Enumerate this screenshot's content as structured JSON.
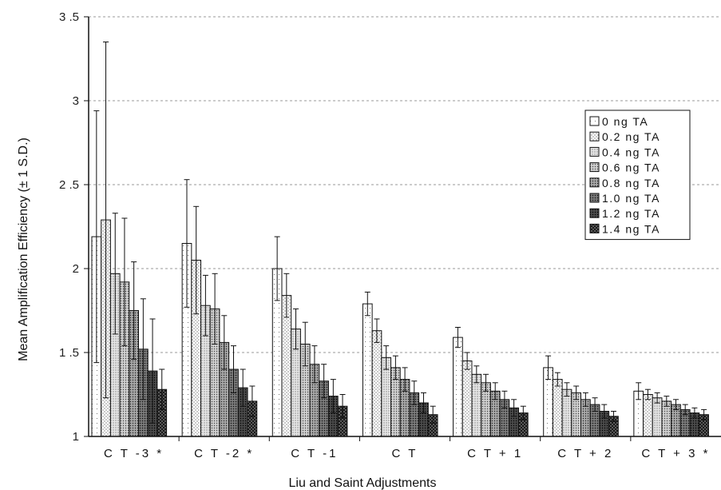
{
  "chart_data": {
    "type": "bar",
    "xlabel": "Liu and Saint Adjustments",
    "ylabel": "Mean Amplification Efficiency (± 1 S.D.)",
    "ylim": [
      1,
      3.5
    ],
    "yticks": [
      1,
      1.5,
      2,
      2.5,
      3,
      3.5
    ],
    "ytick_labels": [
      "1",
      "1 .5",
      "2",
      "2 .5",
      "3",
      "3 .5"
    ],
    "grid": "horizontal dashed",
    "legend_position": "top-right",
    "categories": [
      "CT-3*",
      "CT-2*",
      "CT-1",
      "CT",
      "CT+1",
      "CT+2",
      "CT+3*"
    ],
    "category_labels": [
      "C T -3 *",
      "C T -2 *",
      "C T -1",
      "C T",
      "C T + 1",
      "C T + 2",
      "C T + 3 *"
    ],
    "series": [
      {
        "name": "0 ng TA",
        "legend": "0 ng TA",
        "values": [
          2.19,
          2.15,
          2.0,
          1.79,
          1.59,
          1.41,
          1.27
        ],
        "errors": [
          0.75,
          0.38,
          0.19,
          0.07,
          0.06,
          0.07,
          0.05
        ]
      },
      {
        "name": "0.2 ng TA",
        "legend": "0.2 ng TA",
        "values": [
          2.29,
          2.05,
          1.84,
          1.63,
          1.45,
          1.34,
          1.25
        ],
        "errors": [
          1.06,
          0.32,
          0.13,
          0.07,
          0.05,
          0.04,
          0.03
        ]
      },
      {
        "name": "0.4 ng TA",
        "legend": "0.4 ng TA",
        "values": [
          1.97,
          1.78,
          1.64,
          1.47,
          1.37,
          1.28,
          1.23
        ],
        "errors": [
          0.36,
          0.18,
          0.12,
          0.07,
          0.05,
          0.04,
          0.03
        ]
      },
      {
        "name": "0.6 ng TA",
        "legend": "0.6 ng TA",
        "values": [
          1.92,
          1.76,
          1.55,
          1.41,
          1.32,
          1.26,
          1.21
        ],
        "errors": [
          0.38,
          0.21,
          0.13,
          0.07,
          0.05,
          0.04,
          0.03
        ]
      },
      {
        "name": "0.8 ng TA",
        "legend": "0.8 ng TA",
        "values": [
          1.75,
          1.56,
          1.43,
          1.34,
          1.27,
          1.22,
          1.19
        ],
        "errors": [
          0.29,
          0.16,
          0.11,
          0.07,
          0.05,
          0.04,
          0.03
        ]
      },
      {
        "name": "1.0 ng TA",
        "legend": "1.0 ng TA",
        "values": [
          1.52,
          1.4,
          1.33,
          1.26,
          1.22,
          1.19,
          1.16
        ],
        "errors": [
          0.3,
          0.14,
          0.1,
          0.07,
          0.05,
          0.04,
          0.03
        ]
      },
      {
        "name": "1.2 ng TA",
        "legend": "1.2 ng TA",
        "values": [
          1.39,
          1.29,
          1.24,
          1.2,
          1.17,
          1.15,
          1.14
        ],
        "errors": [
          0.31,
          0.11,
          0.1,
          0.06,
          0.05,
          0.04,
          0.03
        ]
      },
      {
        "name": "1.4 ng TA",
        "legend": "1.4 ng TA",
        "values": [
          1.28,
          1.21,
          1.18,
          1.13,
          1.14,
          1.12,
          1.13
        ],
        "errors": [
          0.12,
          0.09,
          0.07,
          0.05,
          0.04,
          0.03,
          0.03
        ]
      }
    ]
  },
  "colors": {
    "bar_fill": "#ffffff",
    "bar_stroke": "#111111",
    "grid": "#9a9a9a",
    "axis": "#111111"
  }
}
